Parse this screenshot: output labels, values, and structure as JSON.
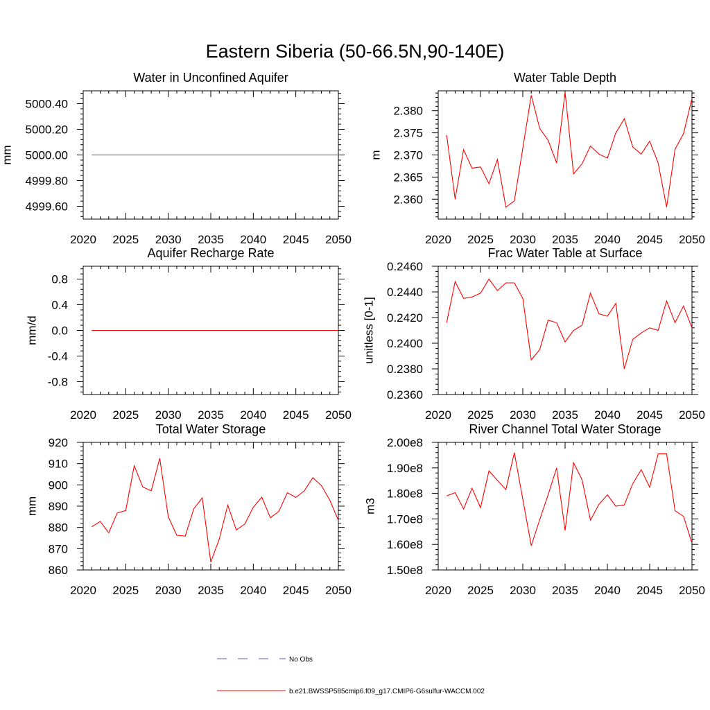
{
  "main_title": "Eastern Siberia (50-66.5N,90-140E)",
  "chart_data": [
    {
      "type": "line",
      "title": "Water in Unconfined Aquifer",
      "ylabel": "mm",
      "xlabel": "",
      "xlim": [
        2020,
        2050
      ],
      "ylim": [
        4999.5,
        5000.5
      ],
      "xticks": [
        2020,
        2025,
        2030,
        2035,
        2040,
        2045,
        2050
      ],
      "xtick_labels": [
        "2020",
        "2025",
        "2030",
        "2035",
        "2040",
        "2045",
        "2050"
      ],
      "yticks": [
        4999.6,
        4999.8,
        5000.0,
        5000.2,
        5000.4
      ],
      "ytick_labels": [
        "4999.60",
        "4999.80",
        "5000.00",
        "5000.20",
        "5000.40"
      ],
      "x": [
        2021,
        2050
      ],
      "series": [
        {
          "values": [
            5000.0,
            5000.0
          ],
          "color": "#ff0000"
        }
      ]
    },
    {
      "type": "line",
      "title": "Water Table Depth",
      "ylabel": "m",
      "xlabel": "",
      "xlim": [
        2020,
        2050
      ],
      "ylim": [
        2.3555,
        2.3845
      ],
      "xticks": [
        2020,
        2025,
        2030,
        2035,
        2040,
        2045,
        2050
      ],
      "xtick_labels": [
        "2020",
        "2025",
        "2030",
        "2035",
        "2040",
        "2045",
        "2050"
      ],
      "yticks": [
        2.36,
        2.365,
        2.37,
        2.375,
        2.38
      ],
      "ytick_labels": [
        "2.360",
        "2.365",
        "2.370",
        "2.375",
        "2.380"
      ],
      "x": [
        2021,
        2022,
        2023,
        2024,
        2025,
        2026,
        2027,
        2028,
        2029,
        2030,
        2031,
        2032,
        2033,
        2034,
        2035,
        2036,
        2037,
        2038,
        2039,
        2040,
        2041,
        2042,
        2043,
        2044,
        2045,
        2046,
        2047,
        2048,
        2049,
        2050
      ],
      "series": [
        {
          "values": [
            2.3745,
            2.36,
            2.3712,
            2.367,
            2.3673,
            2.3635,
            2.369,
            2.3582,
            2.3596,
            2.3715,
            2.3835,
            2.376,
            2.3733,
            2.3682,
            2.3842,
            2.3657,
            2.368,
            2.372,
            2.3702,
            2.3693,
            2.375,
            2.3782,
            2.3718,
            2.3702,
            2.3731,
            2.3682,
            2.3582,
            2.3713,
            2.3748,
            2.3828
          ],
          "color": "#ff0000"
        }
      ]
    },
    {
      "type": "line",
      "title": "Aquifer Recharge Rate",
      "ylabel": "mm/d",
      "xlabel": "",
      "xlim": [
        2020,
        2050
      ],
      "ylim": [
        -1.0,
        1.0
      ],
      "xticks": [
        2020,
        2025,
        2030,
        2035,
        2040,
        2045,
        2050
      ],
      "xtick_labels": [
        "2020",
        "2025",
        "2030",
        "2035",
        "2040",
        "2045",
        "2050"
      ],
      "yticks": [
        -0.8,
        -0.4,
        0.0,
        0.4,
        0.8
      ],
      "ytick_labels": [
        "-0.8",
        "-0.4",
        "0.0",
        "0.4",
        "0.8"
      ],
      "x": [
        2021,
        2050
      ],
      "series": [
        {
          "values": [
            0.0,
            0.0
          ],
          "color": "#ff0000"
        }
      ]
    },
    {
      "type": "line",
      "title": "Frac Water Table at Surface",
      "ylabel": "unitless [0-1]",
      "xlabel": "",
      "xlim": [
        2020,
        2050
      ],
      "ylim": [
        0.236,
        0.246
      ],
      "xticks": [
        2020,
        2025,
        2030,
        2035,
        2040,
        2045,
        2050
      ],
      "xtick_labels": [
        "2020",
        "2025",
        "2030",
        "2035",
        "2040",
        "2045",
        "2050"
      ],
      "yticks": [
        0.236,
        0.238,
        0.24,
        0.242,
        0.244,
        0.246
      ],
      "ytick_labels": [
        "0.2360",
        "0.2380",
        "0.2400",
        "0.2420",
        "0.2440",
        "0.2460"
      ],
      "x": [
        2021,
        2022,
        2023,
        2024,
        2025,
        2026,
        2027,
        2028,
        2029,
        2030,
        2031,
        2032,
        2033,
        2034,
        2035,
        2036,
        2037,
        2038,
        2039,
        2040,
        2041,
        2042,
        2043,
        2044,
        2045,
        2046,
        2047,
        2048,
        2049,
        2050
      ],
      "series": [
        {
          "values": [
            0.2416,
            0.2448,
            0.2435,
            0.2436,
            0.2439,
            0.245,
            0.2441,
            0.2447,
            0.2447,
            0.2435,
            0.2387,
            0.2395,
            0.2418,
            0.2416,
            0.2401,
            0.241,
            0.2414,
            0.2439,
            0.2423,
            0.2421,
            0.2431,
            0.238,
            0.2403,
            0.2408,
            0.2412,
            0.241,
            0.2433,
            0.2416,
            0.2429,
            0.2412
          ],
          "color": "#ff0000"
        }
      ]
    },
    {
      "type": "line",
      "title": "Total Water Storage",
      "ylabel": "mm",
      "xlabel": "",
      "xlim": [
        2020,
        2050
      ],
      "ylim": [
        860,
        920
      ],
      "xticks": [
        2020,
        2025,
        2030,
        2035,
        2040,
        2045,
        2050
      ],
      "xtick_labels": [
        "2020",
        "2025",
        "2030",
        "2035",
        "2040",
        "2045",
        "2050"
      ],
      "yticks": [
        860,
        870,
        880,
        890,
        900,
        910,
        920
      ],
      "ytick_labels": [
        "860",
        "870",
        "880",
        "890",
        "900",
        "910",
        "920"
      ],
      "x": [
        2021,
        2022,
        2023,
        2024,
        2025,
        2026,
        2027,
        2028,
        2029,
        2030,
        2031,
        2032,
        2033,
        2034,
        2035,
        2036,
        2037,
        2038,
        2039,
        2040,
        2041,
        2042,
        2043,
        2044,
        2045,
        2046,
        2047,
        2048,
        2049,
        2050
      ],
      "series": [
        {
          "values": [
            880.3,
            882.8,
            877.5,
            886.8,
            887.9,
            909.0,
            899.0,
            897.2,
            912.5,
            885.0,
            876.3,
            875.9,
            888.8,
            893.9,
            863.7,
            874.6,
            890.5,
            878.8,
            881.6,
            889.5,
            894.2,
            884.6,
            887.5,
            896.3,
            894.1,
            897.2,
            903.4,
            899.7,
            892.8,
            883.3
          ],
          "color": "#ff0000"
        }
      ]
    },
    {
      "type": "line",
      "title": "River Channel Total Water Storage",
      "ylabel": "m3",
      "xlabel": "",
      "xlim": [
        2020,
        2050
      ],
      "ylim": [
        150000000,
        200000000
      ],
      "xticks": [
        2020,
        2025,
        2030,
        2035,
        2040,
        2045,
        2050
      ],
      "xtick_labels": [
        "2020",
        "2025",
        "2030",
        "2035",
        "2040",
        "2045",
        "2050"
      ],
      "yticks": [
        150000000,
        160000000,
        170000000,
        180000000,
        190000000,
        200000000
      ],
      "ytick_labels": [
        "1.50e8",
        "1.60e8",
        "1.70e8",
        "1.80e8",
        "1.90e8",
        "2.00e8"
      ],
      "x": [
        2021,
        2022,
        2023,
        2024,
        2025,
        2026,
        2027,
        2028,
        2029,
        2030,
        2031,
        2032,
        2033,
        2034,
        2035,
        2036,
        2037,
        2038,
        2039,
        2040,
        2041,
        2042,
        2043,
        2044,
        2045,
        2046,
        2047,
        2048,
        2049,
        2050
      ],
      "series": [
        {
          "values": [
            179000000,
            180300000,
            173900000,
            182000000,
            174400000,
            188800000,
            185100000,
            181500000,
            196000000,
            177700000,
            159500000,
            169700000,
            179500000,
            190000000,
            165500000,
            192000000,
            185400000,
            169500000,
            175700000,
            179400000,
            175000000,
            175500000,
            183800000,
            189300000,
            182400000,
            195500000,
            195500000,
            173200000,
            171000000,
            160500000
          ],
          "color": "#ff0000"
        }
      ]
    }
  ],
  "legend": {
    "items": [
      {
        "label": "No Obs",
        "color": "#4b5bb5",
        "style": "dashed"
      },
      {
        "label": "b.e21.BWSSP585cmip6.f09_g17.CMIP6-G6sulfur-WACCM.002",
        "color": "#ff0000",
        "style": "solid"
      }
    ]
  }
}
